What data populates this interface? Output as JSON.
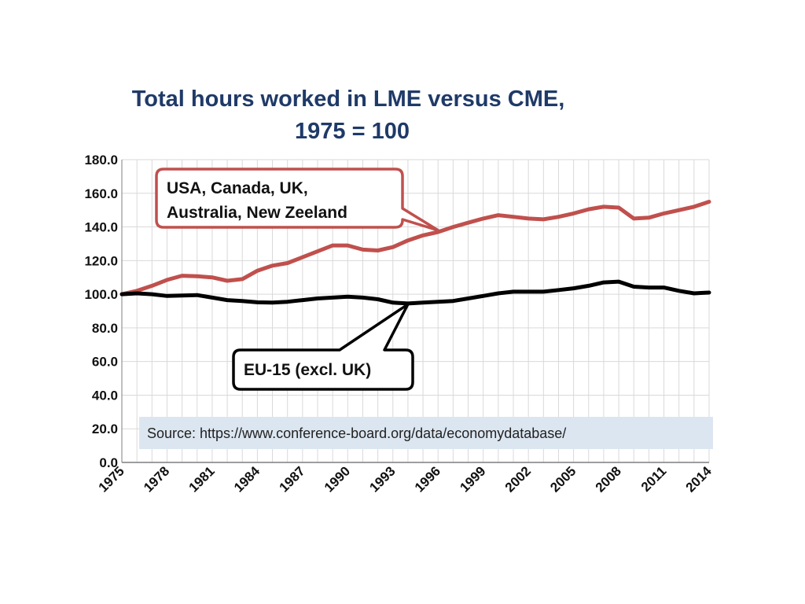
{
  "chart_data": {
    "type": "line",
    "title_lines": [
      "Total hours worked in LME versus CME,",
      "1975 = 100"
    ],
    "xlabel": "",
    "ylabel": "",
    "x": [
      1975,
      1976,
      1977,
      1978,
      1979,
      1980,
      1981,
      1982,
      1983,
      1984,
      1985,
      1986,
      1987,
      1988,
      1989,
      1990,
      1991,
      1992,
      1993,
      1994,
      1995,
      1996,
      1997,
      1998,
      1999,
      2000,
      2001,
      2002,
      2003,
      2004,
      2005,
      2006,
      2007,
      2008,
      2009,
      2010,
      2011,
      2012,
      2013,
      2014
    ],
    "xlim": [
      1975,
      2014
    ],
    "x_ticks": [
      "1975",
      "1978",
      "1981",
      "1984",
      "1987",
      "1990",
      "1993",
      "1996",
      "1999",
      "2002",
      "2005",
      "2008",
      "2011",
      "2014"
    ],
    "ylim": [
      0,
      180
    ],
    "y_ticks": [
      "0.0",
      "20.0",
      "40.0",
      "60.0",
      "80.0",
      "100.0",
      "120.0",
      "140.0",
      "160.0",
      "180.0"
    ],
    "grid": true,
    "series": [
      {
        "name": "USA, Canada, UK, Australia, New Zeeland",
        "color": "#c0504d",
        "values": [
          100.0,
          102.0,
          105.0,
          108.5,
          111.0,
          110.7,
          110.0,
          108.0,
          109.0,
          114.0,
          117.0,
          118.5,
          122.0,
          125.5,
          129.0,
          129.0,
          126.5,
          126.0,
          128.0,
          132.0,
          135.0,
          137.0,
          140.0,
          142.5,
          145.0,
          147.0,
          146.0,
          145.0,
          144.5,
          146.0,
          148.0,
          150.5,
          152.0,
          151.5,
          145.0,
          145.5,
          148.0,
          150.0,
          152.0,
          155.0
        ]
      },
      {
        "name": "EU-15 (excl. UK)",
        "color": "#000000",
        "values": [
          100.0,
          100.5,
          100.0,
          99.0,
          99.2,
          99.5,
          98.0,
          96.5,
          96.0,
          95.2,
          95.0,
          95.5,
          96.5,
          97.5,
          98.0,
          98.5,
          98.0,
          97.0,
          95.0,
          94.5,
          95.0,
          95.5,
          96.0,
          97.5,
          99.0,
          100.5,
          101.5,
          101.5,
          101.5,
          102.5,
          103.5,
          105.0,
          107.0,
          107.5,
          104.5,
          104.0,
          104.0,
          102.0,
          100.5,
          101.0
        ]
      }
    ],
    "callouts": [
      {
        "lines": [
          "USA, Canada, UK,",
          "Australia, New Zeeland"
        ],
        "border_color": "#c0504d",
        "points_to": {
          "x": 1996,
          "y": 138
        }
      },
      {
        "lines": [
          "EU-15 (excl. UK)"
        ],
        "border_color": "#000000",
        "points_to": {
          "x": 1994,
          "y": 94
        }
      }
    ],
    "source_note": "Source: https://www.conference-board.org/data/economydatabase/",
    "source_bg": "#dce6f1"
  }
}
